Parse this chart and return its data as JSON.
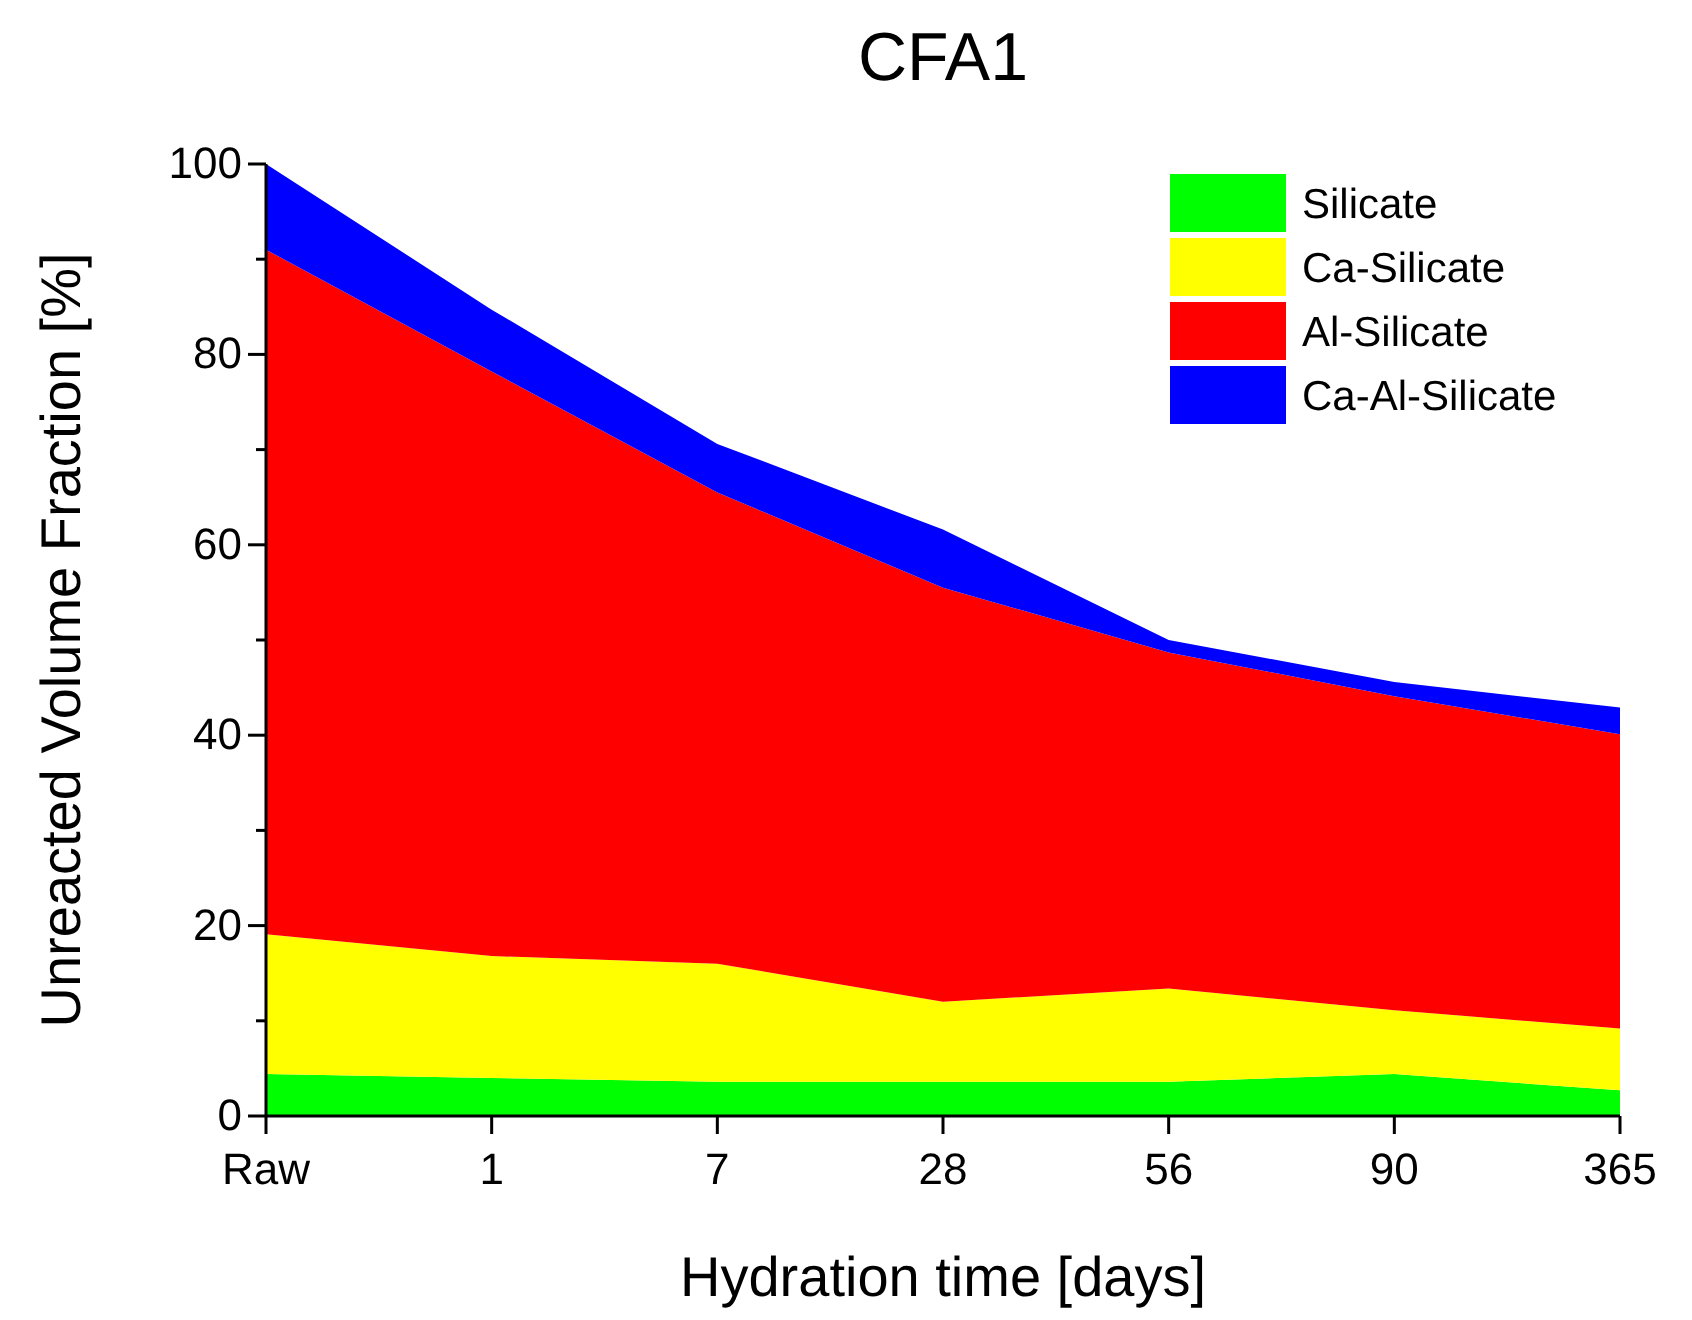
{
  "chart_data": {
    "type": "area",
    "title": "CFA1",
    "xlabel": "Hydration time [days]",
    "ylabel": "Unreacted Volume Fraction [%]",
    "categories": [
      "Raw",
      "1",
      "7",
      "28",
      "56",
      "90",
      "365"
    ],
    "stacked": true,
    "ylim": [
      0,
      100
    ],
    "yticks": [
      0,
      {
        "value": 10,
        "label": null
      },
      20,
      {
        "value": 30,
        "label": null
      },
      40,
      {
        "value": 50,
        "label": null
      },
      60,
      {
        "value": 70,
        "label": null
      },
      80,
      {
        "value": 90,
        "label": null
      },
      100
    ],
    "legend": "top right",
    "series": [
      {
        "name": "Silicate",
        "color": "#00ff00",
        "values": [
          4.4,
          4.0,
          3.6,
          3.6,
          3.6,
          4.4,
          2.7
        ]
      },
      {
        "name": "Ca-Silicate",
        "color": "#ffff00",
        "values": [
          14.7,
          12.8,
          12.4,
          8.4,
          9.8,
          6.7,
          6.5
        ]
      },
      {
        "name": "Al-Silicate",
        "color": "#ff0000",
        "values": [
          71.9,
          61.4,
          49.5,
          43.5,
          35.3,
          33.0,
          30.9
        ]
      },
      {
        "name": "Ca-Al-Silicate",
        "color": "#0000ff",
        "values": [
          9.0,
          6.5,
          5.1,
          6.1,
          1.3,
          1.5,
          2.8
        ]
      }
    ]
  }
}
